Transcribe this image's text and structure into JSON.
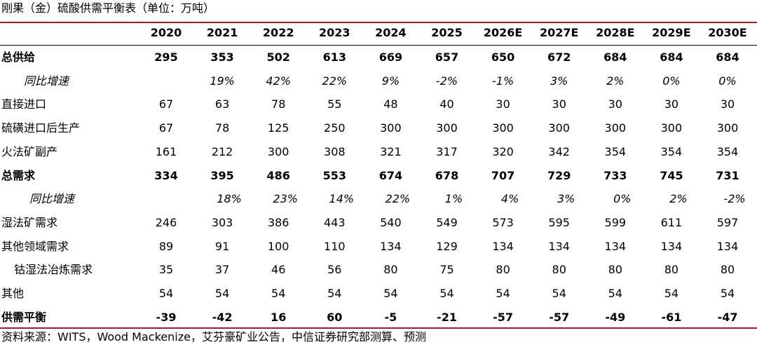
{
  "title": "刚果（金）硫酸供需平衡表（单位：万吨）",
  "table": {
    "columns": [
      "2020",
      "2021",
      "2022",
      "2023",
      "2024",
      "2025",
      "2026E",
      "2027E",
      "2028E",
      "2029E",
      "2030E"
    ],
    "rows": [
      {
        "label": "总供给",
        "values": [
          "295",
          "353",
          "502",
          "613",
          "669",
          "657",
          "650",
          "672",
          "684",
          "684",
          "684"
        ]
      },
      {
        "label": "同比增速",
        "values": [
          null,
          "19%",
          "42%",
          "22%",
          "9%",
          "-2%",
          "-1%",
          "3%",
          "2%",
          "0%",
          "0%"
        ]
      },
      {
        "label": "直接进口",
        "values": [
          "67",
          "63",
          "78",
          "55",
          "48",
          "40",
          "30",
          "30",
          "30",
          "30",
          "30"
        ]
      },
      {
        "label": "硫磺进口后生产",
        "values": [
          "67",
          "78",
          "125",
          "250",
          "300",
          "300",
          "300",
          "300",
          "300",
          "300",
          "300"
        ]
      },
      {
        "label": "火法矿副产",
        "values": [
          "161",
          "212",
          "300",
          "308",
          "321",
          "317",
          "320",
          "342",
          "354",
          "354",
          "354"
        ]
      },
      {
        "label": "总需求",
        "values": [
          "334",
          "395",
          "486",
          "553",
          "674",
          "678",
          "707",
          "729",
          "733",
          "745",
          "731"
        ]
      },
      {
        "label": "同比增速",
        "values": [
          null,
          "18%",
          "23%",
          "14%",
          "22%",
          "1%",
          "4%",
          "3%",
          "0%",
          "2%",
          "-2%"
        ]
      },
      {
        "label": "湿法矿需求",
        "values": [
          "246",
          "303",
          "386",
          "443",
          "540",
          "549",
          "573",
          "595",
          "599",
          "611",
          "597"
        ]
      },
      {
        "label": "其他领域需求",
        "values": [
          "89",
          "91",
          "100",
          "110",
          "134",
          "129",
          "134",
          "134",
          "134",
          "134",
          "134"
        ]
      },
      {
        "label": "钴湿法冶炼需求",
        "values": [
          "35",
          "37",
          "46",
          "56",
          "80",
          "75",
          "80",
          "80",
          "80",
          "80",
          "80"
        ]
      },
      {
        "label": "其他",
        "values": [
          "54",
          "54",
          "54",
          "54",
          "54",
          "54",
          "54",
          "54",
          "54",
          "54",
          "54"
        ]
      },
      {
        "label": "供需平衡",
        "values": [
          "-39",
          "-42",
          "16",
          "60",
          "-5",
          "-21",
          "-57",
          "-57",
          "-49",
          "-61",
          "-47"
        ]
      }
    ]
  },
  "source": "资料来源：WITS，Wood Mackenize，艾芬豪矿业公告，中信证券研究部测算、预测"
}
